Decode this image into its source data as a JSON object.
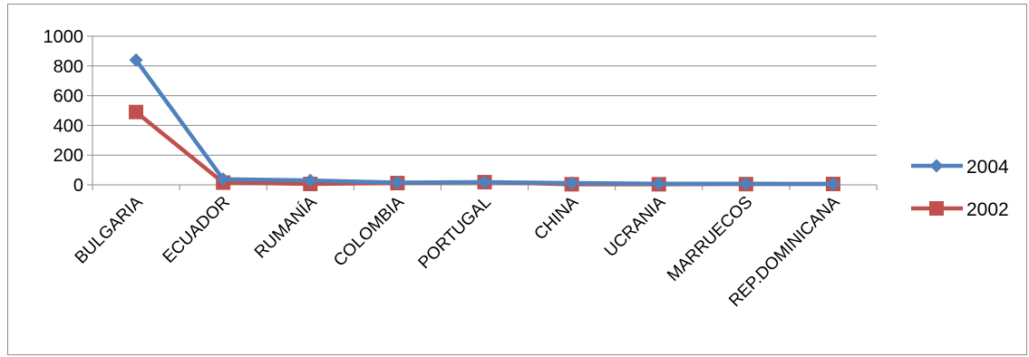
{
  "chart_data": {
    "type": "line",
    "title": "",
    "xlabel": "",
    "ylabel": "",
    "categories": [
      "BULGARIA",
      "ECUADOR",
      "RUMANÍA",
      "COLOMBIA",
      "PORTUGAL",
      "CHINA",
      "UCRANIA",
      "MARRUECOS",
      "REP.DOMINICANA"
    ],
    "ylim": [
      0,
      1000
    ],
    "yticks": [
      0,
      200,
      400,
      600,
      800,
      1000
    ],
    "grid": true,
    "legend_position": "right",
    "series": [
      {
        "name": "2004",
        "color": "#4f81bd",
        "marker": "diamond",
        "values": [
          840,
          38,
          30,
          15,
          18,
          12,
          8,
          8,
          6
        ]
      },
      {
        "name": "2002",
        "color": "#c0504d",
        "marker": "square",
        "values": [
          490,
          15,
          6,
          12,
          18,
          4,
          4,
          5,
          6
        ]
      }
    ]
  }
}
